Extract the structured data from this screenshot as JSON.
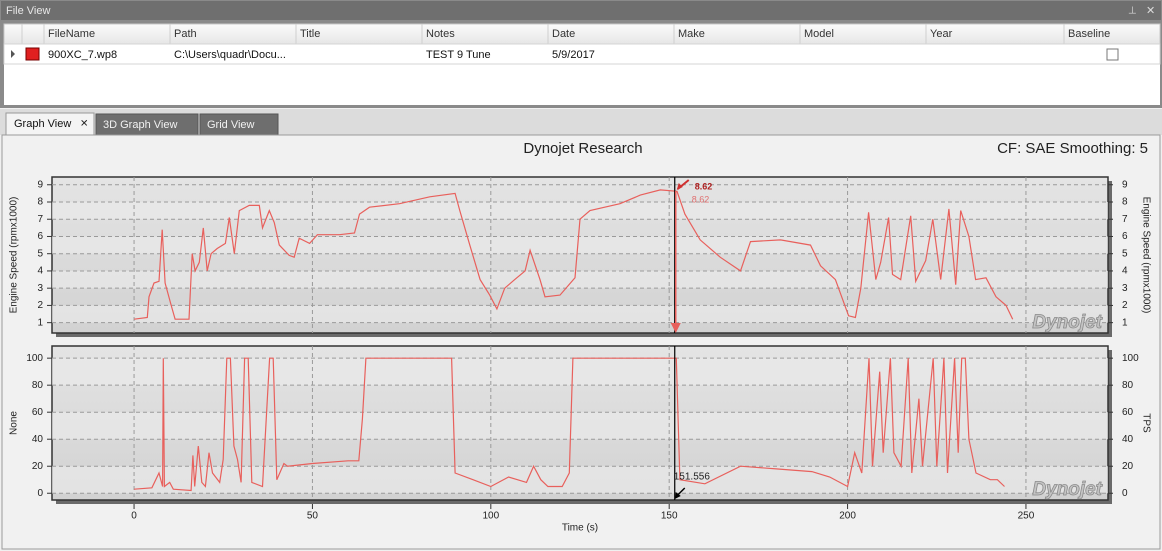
{
  "file_view": {
    "title": "File View",
    "columns": [
      "FileName",
      "Path",
      "Title",
      "Notes",
      "Date",
      "Make",
      "Model",
      "Year",
      "Baseline"
    ],
    "row": {
      "file_name": "900XC_7.wp8",
      "path": "C:\\Users\\quadr\\Docu...",
      "notes": "TEST 9 Tune",
      "date": "5/9/2017"
    }
  },
  "tabs": [
    "Graph View",
    "3D Graph View",
    "Grid View"
  ],
  "graph_header": {
    "title": "Dynojet Research",
    "info": "CF: SAE Smoothing: 5"
  },
  "chart_data": [
    {
      "type": "line",
      "ylabel": "Engine Speed (rpmx1000)",
      "y2label": "Engine Speed (rpmx1000)",
      "color": "#e8605c",
      "x": [
        0,
        3.7,
        4.2,
        5.6,
        7,
        7.9,
        8.7,
        10.4,
        11.5,
        15.4,
        16.3,
        17.1,
        18.3,
        19.4,
        20.5,
        21.6,
        23.3,
        25.6,
        26.7,
        28.1,
        29.5,
        32.3,
        35.1,
        36,
        37.9,
        39.3,
        40.7,
        43.5,
        44.9,
        46.3,
        49.2,
        51.4,
        57.6,
        61.8,
        63.2,
        66,
        74.4,
        82.9,
        90,
        91.3,
        94.1,
        97,
        99.7,
        101.7,
        103.9,
        106.7,
        109.6,
        111,
        113.8,
        115.2,
        119.4,
        123.6,
        125,
        127.8,
        136.2,
        141.9,
        147.5,
        152.2,
        154.4,
        158.7,
        164.3,
        170,
        172.8,
        181.2,
        189.6,
        192.4,
        196.6,
        200.3,
        202.2,
        203.7,
        205.9,
        207.9,
        209.3,
        211.5,
        212.6,
        214.9,
        217.7,
        219.1,
        221.9,
        223.9,
        226.1,
        228.4,
        230.3,
        231.7,
        234,
        235.9,
        238.8,
        241.6,
        244.4,
        246.3
      ],
      "values": [
        1.2,
        1.3,
        2.5,
        3.3,
        3.4,
        6.4,
        3.3,
        2.0,
        1.2,
        1.2,
        5.0,
        4.0,
        4.5,
        6.5,
        4.0,
        5.0,
        5.3,
        5.6,
        7.1,
        5.0,
        7.5,
        7.8,
        7.8,
        6.5,
        7.5,
        6.8,
        5.5,
        4.9,
        4.8,
        5.9,
        5.6,
        6.1,
        6.1,
        6.2,
        7.3,
        7.7,
        7.9,
        8.3,
        8.5,
        7.5,
        5.5,
        3.5,
        2.6,
        1.8,
        3.0,
        3.5,
        4.0,
        5.2,
        3.5,
        2.5,
        2.6,
        3.6,
        7.0,
        7.5,
        7.9,
        8.4,
        8.7,
        8.62,
        7.3,
        5.8,
        4.8,
        4.0,
        5.7,
        5.8,
        5.5,
        4.3,
        3.5,
        1.4,
        1.3,
        3.0,
        7.4,
        3.5,
        4.5,
        7.1,
        3.8,
        3.5,
        7.2,
        3.4,
        4.6,
        7.0,
        3.5,
        7.6,
        3.2,
        7.5,
        6.0,
        3.5,
        3.6,
        2.5,
        2.0,
        1.2
      ],
      "xlim": [
        -23,
        273
      ],
      "xticks": [
        0,
        50,
        100,
        150,
        200,
        250
      ],
      "show_xtick_labels": false,
      "ylim": [
        0.4,
        9.45
      ],
      "yticks": [
        1,
        2,
        3,
        4,
        5,
        6,
        7,
        8,
        9
      ],
      "y2lim": [
        0.4,
        9.45
      ],
      "y2ticks": [
        1,
        2,
        3,
        4,
        5,
        6,
        7,
        8,
        9
      ],
      "grid": true,
      "cursor_labels": [
        8.62,
        8.62
      ],
      "watermark": "Dynojet"
    },
    {
      "type": "line",
      "ylabel": "None",
      "y2label": "TPS",
      "xlabel": "Time (s)",
      "color": "#e8605c",
      "x": [
        0,
        5,
        7,
        8,
        8.2,
        8.5,
        10,
        11,
        16,
        16.5,
        17,
        18,
        19,
        20,
        21,
        22,
        24,
        25,
        26,
        27,
        28,
        29,
        30,
        31,
        32,
        33,
        36,
        38,
        39,
        40,
        42,
        43,
        50,
        60,
        63,
        64,
        65,
        70,
        80,
        89,
        90,
        95,
        100,
        105,
        110,
        112,
        114,
        116,
        120,
        122,
        123,
        130,
        140,
        150,
        152,
        153,
        160,
        170,
        180,
        190,
        195,
        200,
        202,
        204,
        206,
        207,
        209,
        210,
        212,
        213,
        215,
        217,
        218,
        220,
        221,
        224,
        225,
        227,
        228,
        230,
        231,
        232,
        233,
        234,
        236,
        240,
        242,
        244
      ],
      "values": [
        3,
        4,
        15,
        5,
        100,
        5,
        8,
        3,
        2,
        28,
        5,
        35,
        8,
        5,
        30,
        15,
        8,
        25,
        100,
        100,
        35,
        25,
        8,
        100,
        100,
        8,
        5,
        100,
        100,
        10,
        22,
        20,
        22,
        24,
        24,
        55,
        100,
        100,
        100,
        100,
        15,
        10,
        5,
        12,
        8,
        20,
        10,
        5,
        5,
        15,
        100,
        100,
        100,
        100,
        100,
        10,
        7,
        20,
        18,
        16,
        12,
        5,
        30,
        15,
        100,
        20,
        90,
        30,
        100,
        30,
        20,
        100,
        15,
        70,
        20,
        100,
        20,
        100,
        15,
        100,
        30,
        100,
        100,
        40,
        15,
        10,
        10,
        5
      ],
      "xlim": [
        -23,
        273
      ],
      "xticks": [
        0,
        50,
        100,
        150,
        200,
        250
      ],
      "show_xtick_labels": true,
      "ylim": [
        -5,
        109
      ],
      "yticks": [
        0,
        20,
        40,
        60,
        80,
        100
      ],
      "y2lim": [
        -5,
        109
      ],
      "y2ticks": [
        0,
        20,
        40,
        60,
        80,
        100
      ],
      "grid": true,
      "cursor_x": 151.556,
      "watermark": "Dynojet"
    }
  ]
}
